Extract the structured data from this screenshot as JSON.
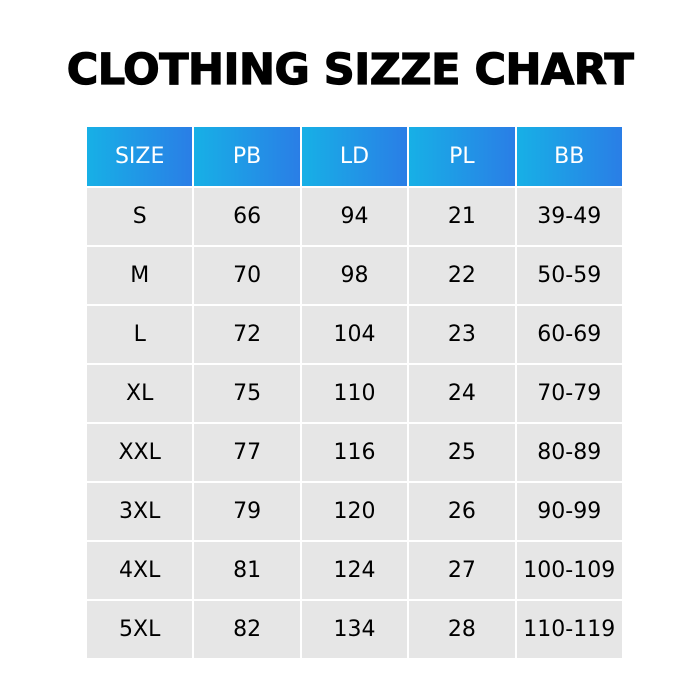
{
  "title": "CLOTHING SIZZE CHART",
  "colors": {
    "header_gradient_start": "#17b0e6",
    "header_gradient_end": "#2a7ee6",
    "cell_background": "#e6e6e6",
    "grid_lines": "#ffffff"
  },
  "table": {
    "headers": [
      "SIZE",
      "PB",
      "LD",
      "PL",
      "BB"
    ],
    "rows": [
      [
        "S",
        "66",
        "94",
        "21",
        "39-49"
      ],
      [
        "M",
        "70",
        "98",
        "22",
        "50-59"
      ],
      [
        "L",
        "72",
        "104",
        "23",
        "60-69"
      ],
      [
        "XL",
        "75",
        "110",
        "24",
        "70-79"
      ],
      [
        "XXL",
        "77",
        "116",
        "25",
        "80-89"
      ],
      [
        "3XL",
        "79",
        "120",
        "26",
        "90-99"
      ],
      [
        "4XL",
        "81",
        "124",
        "27",
        "100-109"
      ],
      [
        "5XL",
        "82",
        "134",
        "28",
        "110-119"
      ]
    ]
  }
}
